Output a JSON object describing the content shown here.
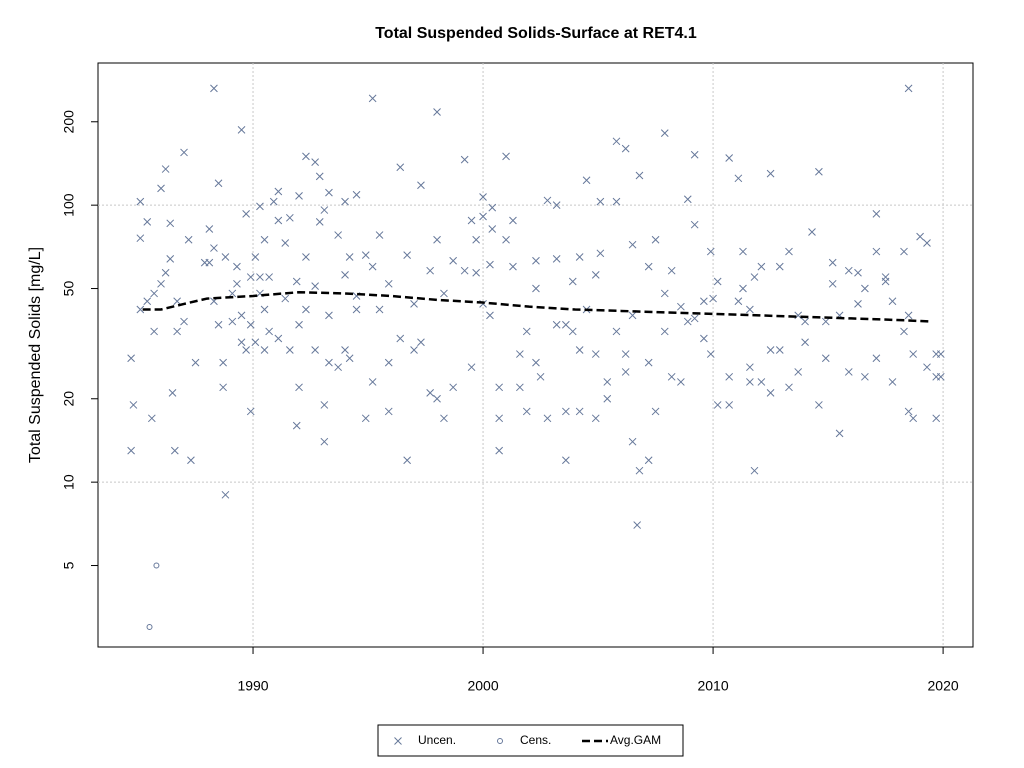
{
  "chart_data": {
    "type": "scatter",
    "title": "Total Suspended Solids-Surface at RET4.1",
    "y_label": "Total Suspended Solids [mg/L]",
    "log_y": true,
    "grid": true,
    "legend": "bottom",
    "xlim": [
      1983.26,
      2021.3
    ],
    "xticks": [
      1990,
      2000,
      2010,
      2020
    ],
    "ylim": [
      2.54,
      326
    ],
    "yticks": [
      5,
      10,
      20,
      50,
      100,
      200
    ],
    "series": [
      {
        "name": "Uncen.",
        "color": "#66789a",
        "marker": "x",
        "x": [
          1984.7,
          1984.7,
          1984.8,
          1985.1,
          1985.1,
          1985.1,
          1985.4,
          1985.4,
          1985.6,
          1985.7,
          1985.7,
          1986,
          1986,
          1986.2,
          1986.2,
          1986.4,
          1986.4,
          1986.5,
          1986.6,
          1986.7,
          1986.7,
          1987,
          1987,
          1987.2,
          1987.3,
          1987.5,
          1987.9,
          1988.1,
          1988.1,
          1988.3,
          1988.3,
          1988.3,
          1988.5,
          1988.5,
          1988.7,
          1988.7,
          1988.8,
          1988.8,
          1989.1,
          1989.1,
          1989.3,
          1989.3,
          1989.5,
          1989.5,
          1989.5,
          1989.7,
          1989.7,
          1989.9,
          1989.9,
          1989.9,
          1990.1,
          1990.1,
          1990.3,
          1990.3,
          1990.3,
          1990.5,
          1990.5,
          1990.5,
          1990.7,
          1990.7,
          1990.9,
          1991.1,
          1991.1,
          1991.1,
          1991.4,
          1991.4,
          1991.6,
          1991.6,
          1991.9,
          1991.9,
          1992,
          1992,
          1992,
          1992.3,
          1992.3,
          1992.3,
          1992.7,
          1992.7,
          1992.7,
          1992.9,
          1992.9,
          1993.1,
          1993.1,
          1993.1,
          1993.3,
          1993.3,
          1993.3,
          1993.7,
          1993.7,
          1994,
          1994,
          1994,
          1994.2,
          1994.2,
          1994.5,
          1994.5,
          1994.5,
          1994.9,
          1994.9,
          1995.2,
          1995.2,
          1995.2,
          1995.5,
          1995.5,
          1995.9,
          1995.9,
          1995.9,
          1996.4,
          1996.4,
          1996.7,
          1996.7,
          1997,
          1997,
          1997.3,
          1997.3,
          1997.7,
          1997.7,
          1998,
          1998,
          1998,
          1998.3,
          1998.3,
          1998.7,
          1998.7,
          1999.2,
          1999.2,
          1999.5,
          1999.5,
          1999.7,
          1999.7,
          2000,
          2000,
          2000,
          2000.3,
          2000.3,
          2000.4,
          2000.4,
          2000.7,
          2000.7,
          2000.7,
          2001,
          2001,
          2001.3,
          2001.3,
          2001.6,
          2001.6,
          2001.9,
          2001.9,
          2002.3,
          2002.3,
          2002.3,
          2002.5,
          2002.8,
          2002.8,
          2003.2,
          2003.2,
          2003.2,
          2003.6,
          2003.6,
          2003.6,
          2003.9,
          2003.9,
          2004.2,
          2004.2,
          2004.2,
          2004.5,
          2004.5,
          2004.9,
          2004.9,
          2004.9,
          2005.1,
          2005.1,
          2005.4,
          2005.4,
          2005.8,
          2005.8,
          2005.8,
          2006.2,
          2006.2,
          2006.2,
          2006.5,
          2006.5,
          2006.5,
          2006.7,
          2006.8,
          2006.8,
          2007.2,
          2007.2,
          2007.2,
          2007.5,
          2007.5,
          2007.9,
          2007.9,
          2007.9,
          2008.2,
          2008.2,
          2008.6,
          2008.6,
          2008.9,
          2008.9,
          2009.2,
          2009.2,
          2009.2,
          2009.6,
          2009.6,
          2009.9,
          2009.9,
          2010,
          2010.2,
          2010.2,
          2010.7,
          2010.7,
          2010.7,
          2011.1,
          2011.1,
          2011.3,
          2011.3,
          2011.6,
          2011.6,
          2011.6,
          2011.8,
          2011.8,
          2012.1,
          2012.1,
          2012.5,
          2012.5,
          2012.5,
          2012.9,
          2012.9,
          2013.3,
          2013.3,
          2013.7,
          2013.7,
          2014,
          2014,
          2014.3,
          2014.6,
          2014.6,
          2014.9,
          2014.9,
          2015.2,
          2015.2,
          2015.5,
          2015.5,
          2015.9,
          2015.9,
          2016.3,
          2016.3,
          2016.6,
          2016.6,
          2017.1,
          2017.1,
          2017.1,
          2017.5,
          2017.5,
          2017.8,
          2017.8,
          2018.3,
          2018.3,
          2018.5,
          2018.5,
          2018.5,
          2018.7,
          2018.7,
          2019,
          2019.3,
          2019.3,
          2019.7,
          2019.7,
          2019.7,
          2019.9,
          2019.9
        ],
        "values": [
          13,
          28,
          19,
          42,
          103,
          76,
          87,
          45,
          17,
          35,
          48,
          115,
          52,
          135,
          57,
          86,
          64,
          21,
          13,
          45,
          35,
          155,
          38,
          75,
          12,
          27,
          62,
          82,
          62,
          264,
          70,
          45,
          120,
          37,
          27,
          22,
          9,
          65,
          38,
          48,
          60,
          52,
          187,
          40,
          32,
          93,
          30,
          18,
          37,
          55,
          65,
          32,
          99,
          55,
          48,
          75,
          30,
          42,
          55,
          35,
          103,
          112,
          88,
          33,
          73,
          46,
          90,
          30,
          53,
          16,
          22,
          37,
          108,
          150,
          65,
          42,
          143,
          30,
          51,
          127,
          87,
          96,
          19,
          14,
          111,
          40,
          27,
          78,
          26,
          103,
          56,
          30,
          28,
          65,
          109,
          47,
          42,
          17,
          66,
          243,
          23,
          60,
          78,
          42,
          18,
          52,
          27,
          137,
          33,
          12,
          66,
          44,
          30,
          118,
          32,
          58,
          21,
          217,
          20,
          75,
          48,
          17,
          63,
          22,
          146,
          58,
          88,
          26,
          57,
          75,
          91,
          107,
          44,
          61,
          40,
          98,
          82,
          22,
          17,
          13,
          150,
          75,
          88,
          60,
          22,
          29,
          18,
          35,
          50,
          63,
          27,
          24,
          104,
          17,
          100,
          64,
          37,
          12,
          37,
          18,
          53,
          35,
          18,
          65,
          30,
          123,
          42,
          17,
          29,
          56,
          103,
          67,
          20,
          23,
          103,
          170,
          35,
          160,
          29,
          25,
          14,
          72,
          40,
          7,
          11,
          128,
          60,
          27,
          12,
          75,
          18,
          182,
          48,
          35,
          58,
          24,
          43,
          23,
          105,
          38,
          152,
          85,
          39,
          45,
          33,
          68,
          29,
          46,
          19,
          53,
          24,
          148,
          19,
          125,
          45,
          68,
          50,
          23,
          42,
          26,
          11,
          55,
          60,
          23,
          130,
          21,
          30,
          60,
          30,
          68,
          22,
          40,
          25,
          38,
          32,
          80,
          132,
          19,
          28,
          38,
          62,
          52,
          15,
          40,
          25,
          58,
          57,
          44,
          24,
          50,
          93,
          68,
          28,
          53,
          55,
          23,
          45,
          68,
          35,
          264,
          40,
          18,
          17,
          29,
          77,
          26,
          73,
          29,
          24,
          17,
          29,
          24
        ]
      },
      {
        "name": "Cens.",
        "color": "#66789a",
        "marker": "o",
        "x": [
          1985.5,
          1985.8
        ],
        "values": [
          3,
          5
        ]
      },
      {
        "name": "Avg.GAM",
        "color": "#000000",
        "marker": "dashed-line",
        "x": [
          1985.2,
          1986,
          1987,
          1988,
          1990,
          1992,
          1994,
          1996,
          1998,
          2000,
          2002,
          2004,
          2006,
          2008,
          2010,
          2012,
          2014,
          2016,
          2018,
          2019.5
        ],
        "values": [
          42,
          42,
          44,
          46,
          47,
          48.5,
          48,
          47,
          45.5,
          44.5,
          43,
          42,
          41.5,
          41,
          40.5,
          40,
          39.5,
          39,
          38.5,
          38
        ]
      }
    ]
  }
}
